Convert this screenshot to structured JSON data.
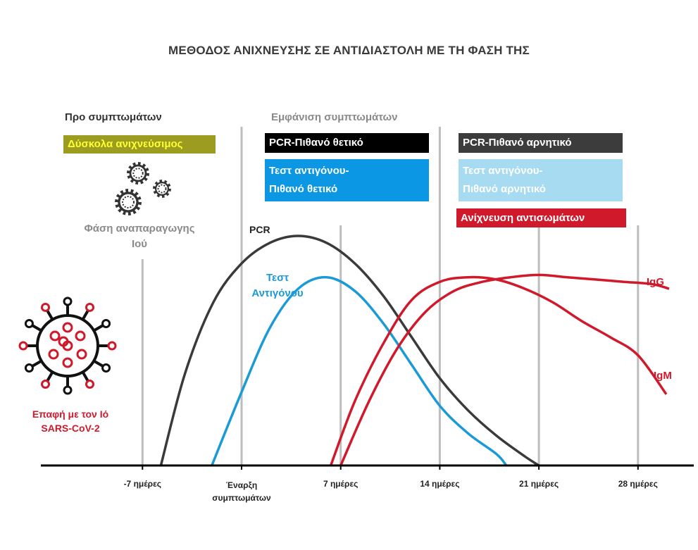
{
  "title": "ΜΕΘΟΔΟΣ ΑΝΙΧΝΕΥΣΗΣ ΣΕ ΑΝΤΙΔΙΑΣΤΟΛΗ ΜΕ ΤΗ ΦΑΣΗ ΤΗΣ",
  "phases": {
    "pre_symptoms": "Προ συμπτωμάτων",
    "symptoms_onset": "Εμφάνιση συμπτωμάτων"
  },
  "boxes": {
    "hard_to_detect": "Δύσκολα ανιχνεύσιμος",
    "pcr_positive": "PCR-Πιθανό θετικό",
    "antigen_positive_line1": "Τεστ αντιγόνου-",
    "antigen_positive_line2": "Πιθανό θετικό",
    "pcr_negative": "PCR-Πιθανό αρνητικό",
    "antigen_negative_line1": "Τεστ αντιγόνου-",
    "antigen_negative_line2": "Πιθανό αρνητικό",
    "antibody_detection": "Ανίχνευση αντισωμάτων"
  },
  "replication": {
    "line1": "Φάση αναπαραγωγης",
    "line2": "Ιού"
  },
  "contact": {
    "line1": "Επαφή με τον Ιό",
    "line2": "SARS-CoV-2"
  },
  "icons": [
    "gears-icon",
    "virus-icon"
  ],
  "colors": {
    "pcr": "#3a3a3a",
    "antigen": "#1a9ad6",
    "antibody": "#d0192b",
    "olive": "#9c9c21",
    "light_blue": "#a7dbf1",
    "grid": "#bdbdbd"
  },
  "chart_data": {
    "type": "line",
    "x_unit": "days",
    "xticks": [
      {
        "x": -7,
        "label": "-7 ημέρες"
      },
      {
        "x": 0,
        "label": "Έναρξη συμπτωμάτων"
      },
      {
        "x": 7,
        "label": "7 ημέρες"
      },
      {
        "x": 14,
        "label": "14 ημέρες"
      },
      {
        "x": 21,
        "label": "21 ημέρες"
      },
      {
        "x": 28,
        "label": "28 ημέρες"
      }
    ],
    "xlim": [
      -14,
      30.5
    ],
    "ylim": [
      0,
      100
    ],
    "series": [
      {
        "name": "PCR",
        "color": "#3a3a3a",
        "points": [
          [
            -5.7,
            0
          ],
          [
            -4,
            40
          ],
          [
            -2,
            71
          ],
          [
            0,
            88
          ],
          [
            2,
            97
          ],
          [
            4,
            100
          ],
          [
            6,
            97
          ],
          [
            8,
            88
          ],
          [
            10,
            74
          ],
          [
            12,
            56
          ],
          [
            14,
            38
          ],
          [
            16,
            24
          ],
          [
            18,
            13
          ],
          [
            20,
            4
          ],
          [
            21,
            0
          ]
        ]
      },
      {
        "name": "Τεστ Αντιγόνου",
        "color": "#1a9ad6",
        "points": [
          [
            -2.1,
            0
          ],
          [
            0,
            32
          ],
          [
            2,
            60
          ],
          [
            4,
            77
          ],
          [
            6,
            82
          ],
          [
            8,
            76
          ],
          [
            10,
            62
          ],
          [
            12,
            44
          ],
          [
            14,
            26
          ],
          [
            16,
            14
          ],
          [
            18,
            5
          ],
          [
            18.7,
            0
          ]
        ]
      },
      {
        "name": "IgM",
        "color": "#d0192b",
        "points": [
          [
            6.3,
            0
          ],
          [
            8,
            28
          ],
          [
            10,
            53
          ],
          [
            12,
            72
          ],
          [
            14,
            80
          ],
          [
            16,
            82
          ],
          [
            18,
            81
          ],
          [
            20,
            77
          ],
          [
            22,
            71
          ],
          [
            24,
            63
          ],
          [
            26,
            56
          ],
          [
            28,
            48
          ],
          [
            30,
            31
          ]
        ]
      },
      {
        "name": "IgG",
        "color": "#d0192b",
        "points": [
          [
            7,
            0
          ],
          [
            9,
            28
          ],
          [
            11,
            51
          ],
          [
            13,
            67
          ],
          [
            15,
            76
          ],
          [
            17,
            80
          ],
          [
            19,
            82
          ],
          [
            21,
            83
          ],
          [
            23,
            82
          ],
          [
            25,
            81
          ],
          [
            27,
            80
          ],
          [
            29,
            79
          ],
          [
            30.2,
            77
          ]
        ]
      }
    ],
    "series_labels": {
      "pcr": "PCR",
      "antigen_line1": "Τεστ",
      "antigen_line2": "Αντιγόνου",
      "igg": "IgG",
      "igm": "IgM"
    }
  }
}
